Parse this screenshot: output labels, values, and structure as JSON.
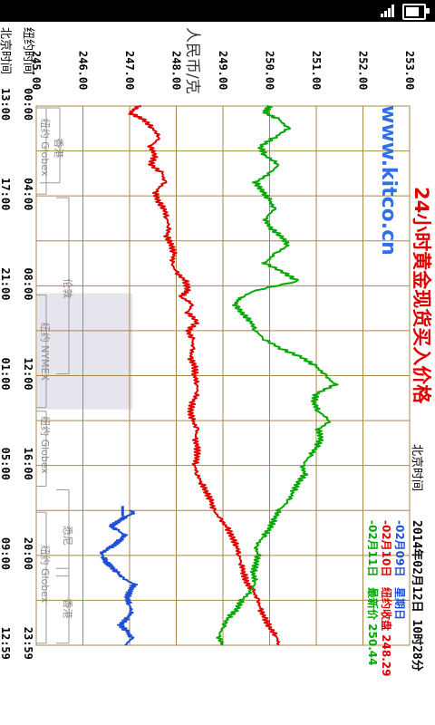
{
  "status_bar": {
    "battery_icon": "battery-full-icon",
    "signal_icon": "signal-icon"
  },
  "chart_data": {
    "type": "line",
    "title": "24小时黄金现货买入价格",
    "watermark": "www.kitco.cn",
    "ylabel": "人民币/克",
    "ylim": [
      245.0,
      253.0
    ],
    "y_ticks": [
      "245.00",
      "246.00",
      "247.00",
      "248.00",
      "249.00",
      "250.00",
      "251.00",
      "252.00",
      "253.00"
    ],
    "x_ticks_ny": [
      "00:00",
      "04:00",
      "08:00",
      "12:00",
      "16:00",
      "20:00",
      "23:59"
    ],
    "x_ticks_bj": [
      "13:00",
      "17:00",
      "21:00",
      "01:00",
      "05:00",
      "09:00",
      "12:59"
    ],
    "x_axis_labels": {
      "ny": "纽约时间",
      "bj": "北京时间"
    },
    "header_time_label": "北京时间",
    "header_datetime": "2014年02月12日 10时28分",
    "legend": [
      {
        "label": "-02月09日",
        "color": "#1f4fd6"
      },
      {
        "label": "-02月10日",
        "color": "#e00000"
      },
      {
        "label": "-02月11日",
        "color": "#00a800"
      }
    ],
    "legend_right": [
      {
        "label": "星期日",
        "color": "#1f4fd6"
      },
      {
        "label": "纽约收盘 248.29",
        "color": "#e00000"
      },
      {
        "label": "最新价 250.44",
        "color": "#00a800"
      }
    ],
    "sessions": [
      {
        "label": "香港",
        "start": 0.0,
        "end": 3.5
      },
      {
        "label": "纽约 Globex",
        "start": 0.0,
        "end": 4.0
      },
      {
        "label": "伦敦",
        "start": 4.0,
        "end": 12.0
      },
      {
        "label": "纽约 NYMEX",
        "start": 8.33,
        "end": 13.5
      },
      {
        "label": "纽约 Globex",
        "start": 13.5,
        "end": 17.0
      },
      {
        "label": "悉尼",
        "start": 17.0,
        "end": 21.0
      },
      {
        "label": "纽约 Globex",
        "start": 18.0,
        "end": 23.99
      },
      {
        "label": "香港",
        "start": 20.5,
        "end": 23.99
      }
    ],
    "nymex_shade": {
      "start": 8.33,
      "end": 13.5,
      "color": "#e6e4ec"
    },
    "grid": true,
    "series": [
      {
        "name": "02月09日",
        "color": "#1f4fd6",
        "hours": [
          18.0,
          18.1,
          18.3,
          18.5,
          18.7,
          18.9,
          19.1,
          19.3,
          19.5,
          19.7,
          19.9,
          20.1,
          20.3,
          20.5,
          20.8,
          21.0,
          21.3,
          21.6,
          21.9,
          22.2,
          22.5,
          22.8,
          23.1,
          23.4,
          23.7,
          23.99
        ],
        "values": [
          247.0,
          247.1,
          246.9,
          246.75,
          246.6,
          246.75,
          246.9,
          246.8,
          246.7,
          246.55,
          246.4,
          246.45,
          246.5,
          246.6,
          246.75,
          246.85,
          247.1,
          247.0,
          246.95,
          247.0,
          247.05,
          246.95,
          246.8,
          246.95,
          247.05,
          246.9
        ]
      },
      {
        "name": "02月10日",
        "color": "#e00000",
        "hours": [
          0.0,
          0.3,
          0.6,
          1.0,
          1.4,
          1.8,
          2.2,
          2.6,
          3.0,
          3.4,
          3.8,
          4.2,
          4.6,
          5.0,
          5.4,
          5.8,
          6.2,
          6.6,
          7.0,
          7.4,
          7.8,
          8.2,
          8.5,
          8.8,
          9.2,
          9.6,
          10.0,
          10.4,
          10.8,
          11.2,
          11.6,
          12.0,
          12.4,
          12.8,
          13.2,
          13.6,
          14.0,
          14.4,
          14.8,
          15.2,
          15.6,
          16.0,
          16.4,
          16.8,
          17.2,
          17.6,
          18.0,
          18.4,
          18.8,
          19.2,
          19.6,
          20.0,
          20.4,
          20.8,
          21.2,
          21.6,
          22.0,
          22.4,
          22.8,
          23.2,
          23.6,
          23.99
        ],
        "values": [
          247.2,
          247.0,
          247.3,
          247.5,
          247.65,
          247.45,
          247.55,
          247.45,
          247.7,
          247.75,
          247.55,
          247.6,
          247.75,
          247.8,
          247.85,
          247.8,
          247.9,
          247.95,
          247.9,
          248.0,
          248.2,
          248.25,
          248.1,
          248.35,
          248.25,
          248.45,
          248.25,
          248.35,
          248.35,
          248.3,
          248.4,
          248.4,
          248.45,
          248.45,
          248.35,
          248.3,
          248.35,
          248.45,
          248.4,
          248.45,
          248.45,
          248.4,
          248.45,
          248.55,
          248.65,
          248.75,
          248.8,
          248.95,
          249.1,
          249.2,
          249.3,
          249.35,
          249.4,
          249.45,
          249.5,
          249.65,
          249.75,
          249.8,
          249.9,
          250.0,
          250.15,
          250.2
        ]
      },
      {
        "name": "02月11日",
        "color": "#00a800",
        "hours": [
          0.0,
          0.3,
          0.6,
          1.0,
          1.4,
          1.8,
          2.2,
          2.6,
          3.0,
          3.4,
          3.8,
          4.2,
          4.6,
          5.0,
          5.4,
          5.8,
          6.2,
          6.6,
          7.0,
          7.4,
          7.8,
          8.2,
          8.5,
          8.8,
          9.2,
          9.6,
          10.0,
          10.4,
          10.8,
          11.2,
          11.6,
          12.0,
          12.4,
          12.8,
          13.2,
          13.6,
          14.0,
          14.4,
          14.8,
          15.2,
          15.6,
          16.0,
          16.4,
          16.8,
          17.2,
          17.6,
          18.0,
          18.4,
          18.8,
          19.2,
          19.6,
          20.0,
          20.4,
          20.8,
          21.2,
          21.6,
          22.0,
          22.4,
          22.8,
          23.2,
          23.6,
          23.99
        ],
        "values": [
          250.0,
          249.9,
          250.2,
          250.4,
          250.1,
          249.8,
          249.9,
          250.2,
          250.0,
          249.7,
          249.85,
          250.0,
          250.1,
          249.9,
          250.0,
          250.25,
          250.4,
          250.1,
          249.9,
          250.3,
          250.6,
          249.7,
          249.4,
          249.25,
          249.4,
          249.6,
          249.7,
          249.9,
          250.25,
          250.7,
          251.0,
          251.2,
          251.4,
          251.0,
          250.95,
          251.05,
          251.3,
          251.05,
          251.1,
          251.0,
          250.85,
          250.7,
          250.75,
          250.6,
          250.5,
          250.4,
          250.2,
          250.1,
          250.0,
          249.85,
          249.7,
          249.75,
          249.7,
          249.65,
          249.7,
          249.6,
          249.4,
          249.3,
          249.1,
          249.0,
          248.9,
          249.0
        ]
      }
    ]
  }
}
